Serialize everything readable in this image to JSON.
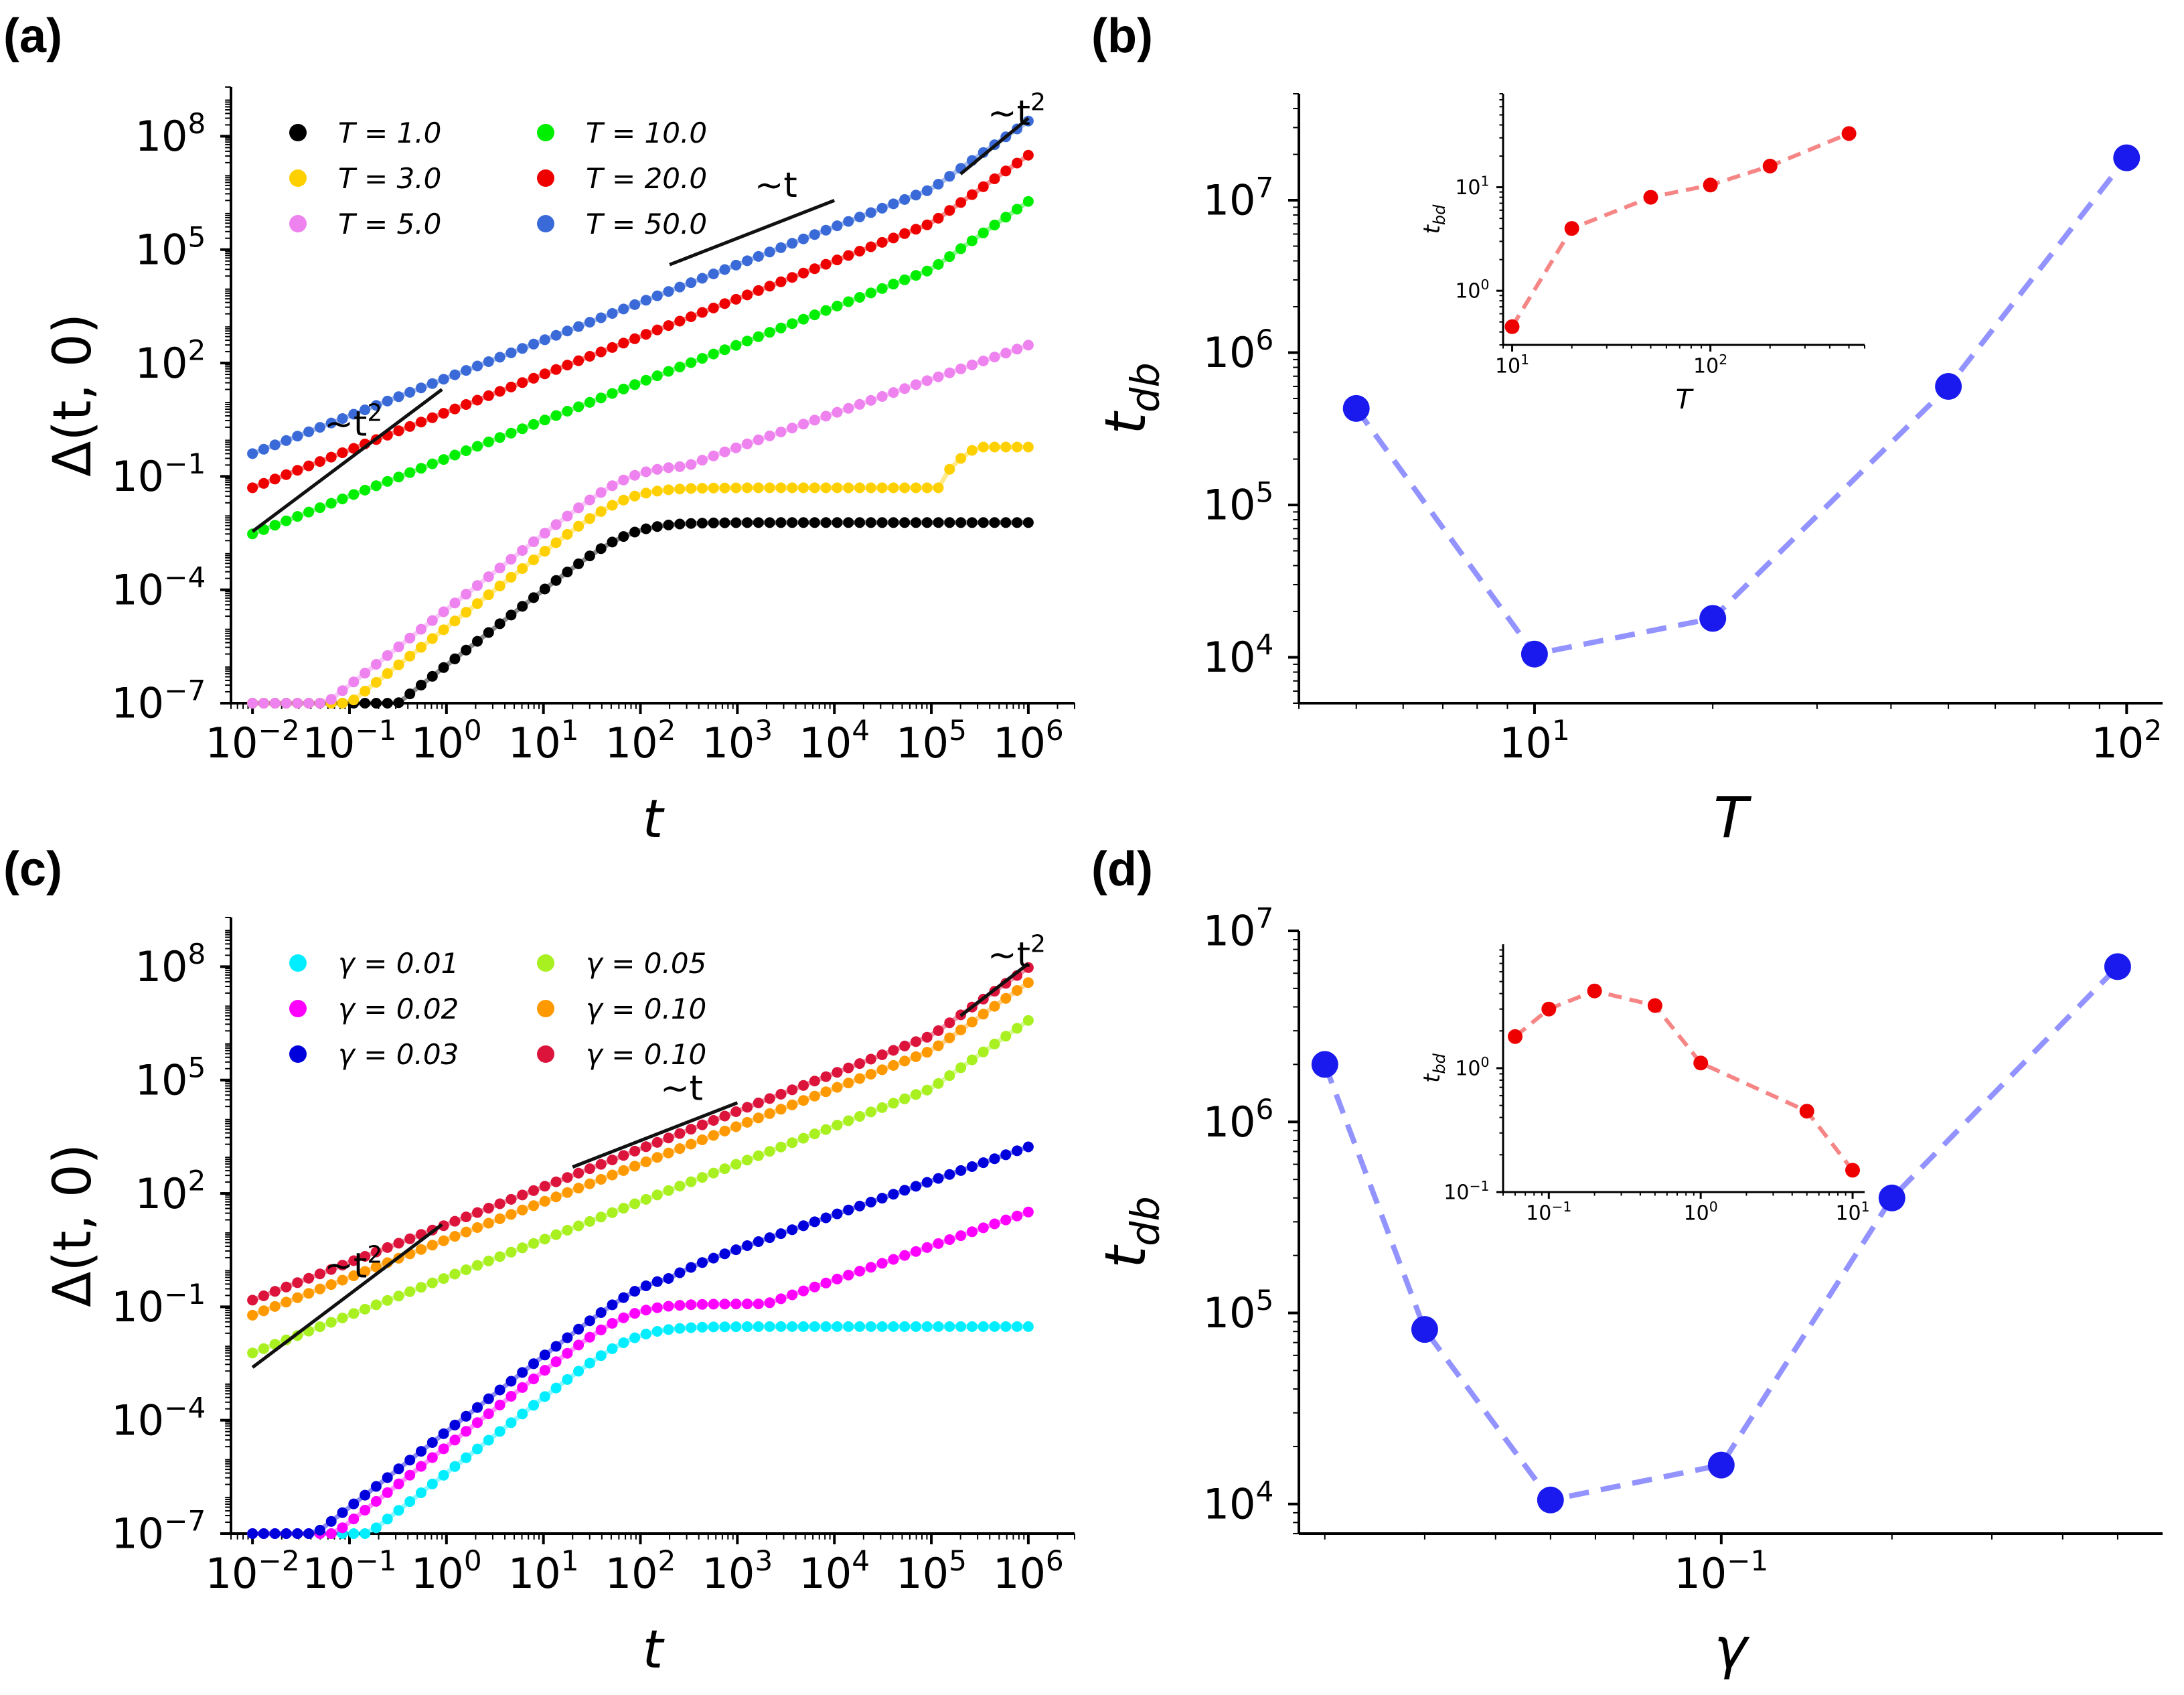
{
  "panels": {
    "a": {
      "label": "(a)"
    },
    "b": {
      "label": "(b)"
    },
    "c": {
      "label": "(c)"
    },
    "d": {
      "label": "(d)"
    }
  },
  "chart_data": [
    {
      "id": "a",
      "type": "line",
      "scale": "log-log",
      "xlabel": "t",
      "ylabel": "Δ(t, 0)",
      "xlim": [
        0.006,
        3000000
      ],
      "ylim": [
        1e-07,
        2000000000.0
      ],
      "xticks": [
        {
          "v": 0.01,
          "m": "10",
          "e": "−2"
        },
        {
          "v": 0.1,
          "m": "10",
          "e": "−1"
        },
        {
          "v": 1,
          "m": "10",
          "e": "0"
        },
        {
          "v": 10,
          "m": "10",
          "e": "1"
        },
        {
          "v": 100,
          "m": "10",
          "e": "2"
        },
        {
          "v": 1000,
          "m": "10",
          "e": "3"
        },
        {
          "v": 10000,
          "m": "10",
          "e": "4"
        },
        {
          "v": 100000,
          "m": "10",
          "e": "5"
        },
        {
          "v": 1000000,
          "m": "10",
          "e": "6"
        }
      ],
      "yticks": [
        {
          "v": 1e-07,
          "m": "10",
          "e": "−7"
        },
        {
          "v": 0.0001,
          "m": "10",
          "e": "−4"
        },
        {
          "v": 0.1,
          "m": "10",
          "e": "−1"
        },
        {
          "v": 100,
          "m": "10",
          "e": "2"
        },
        {
          "v": 100000,
          "m": "10",
          "e": "5"
        },
        {
          "v": 100000000,
          "m": "10",
          "e": "8"
        }
      ],
      "series": [
        {
          "name": "T = 1.0",
          "color": "#000000",
          "plateau": 0.006,
          "jump_t": 0,
          "jump_to": 0,
          "growth_t": 0,
          "lin_pref": 0
        },
        {
          "name": "T = 3.0",
          "color": "#ffd000",
          "plateau": 0.05,
          "jump_t": 120000,
          "jump_to": 0.6,
          "growth_t": 0,
          "lin_pref": 0
        },
        {
          "name": "T = 5.0",
          "color": "#ee82ee",
          "plateau": 0.2,
          "jump_t": 0,
          "jump_to": 0,
          "growth_t": 300,
          "lin_pref": 0
        },
        {
          "name": "T = 10.0",
          "color": "#00ee00",
          "plateau": 3,
          "jump_t": 0,
          "jump_to": 0,
          "growth_t": 0,
          "lin_pref": 0.3
        },
        {
          "name": "T = 20.0",
          "color": "#ee0000",
          "plateau": 20,
          "jump_t": 0,
          "jump_to": 0,
          "growth_t": 0,
          "lin_pref": 5
        },
        {
          "name": "T = 50.0",
          "color": "#3a6ad8",
          "plateau": 150,
          "jump_t": 0,
          "jump_to": 0,
          "growth_t": 0,
          "lin_pref": 40
        }
      ],
      "series_a0": [
        1e-06,
        1e-05,
        3e-05,
        0.0001,
        0.0003,
        0.001
      ],
      "annotations": [
        {
          "text": "~t",
          "sup": "2",
          "x0": 0.01,
          "y0": 0.0035,
          "x1": 0.9,
          "y1": 20,
          "tx": 0.055,
          "ty": 1.2
        },
        {
          "text": "~t",
          "sup": "",
          "x0": 200,
          "y0": 40000,
          "x1": 10000,
          "y1": 2000000,
          "tx": 1500,
          "ty": 2500000
        },
        {
          "text": "~t",
          "sup": "2",
          "x0": 200000,
          "y0": 10000000,
          "x1": 1000000,
          "y1": 300000000,
          "tx": 380000,
          "ty": 200000000
        }
      ]
    },
    {
      "id": "b",
      "type": "line",
      "scale": "log-log",
      "xlabel": "T",
      "ylabel": "t_db",
      "xlim": [
        4,
        115
      ],
      "ylim": [
        5000,
        50000000
      ],
      "xticks": [
        {
          "v": 10,
          "m": "10",
          "e": "1"
        },
        {
          "v": 100,
          "m": "10",
          "e": "2"
        }
      ],
      "yticks": [
        {
          "v": 10000,
          "m": "10",
          "e": "4"
        },
        {
          "v": 100000,
          "m": "10",
          "e": "5"
        },
        {
          "v": 1000000,
          "m": "10",
          "e": "6"
        },
        {
          "v": 10000000,
          "m": "10",
          "e": "7"
        }
      ],
      "x": [
        5,
        10,
        20,
        50,
        100
      ],
      "y": [
        430000,
        10500,
        18000,
        600000,
        19000000
      ],
      "color": "#4b4bff",
      "inset": {
        "xlabel": "T",
        "ylabel": "t_bd",
        "xlim": [
          9,
          600
        ],
        "ylim": [
          0.3,
          80
        ],
        "xticks": [
          {
            "v": 10,
            "m": "10",
            "e": "1"
          },
          {
            "v": 100,
            "m": "10",
            "e": "2"
          }
        ],
        "yticks": [
          {
            "v": 1,
            "m": "10",
            "e": "0"
          },
          {
            "v": 10,
            "m": "10",
            "e": "1"
          }
        ],
        "x": [
          10,
          20,
          50,
          100,
          200,
          500
        ],
        "y": [
          0.45,
          4.0,
          8.0,
          10.5,
          16.0,
          33.0
        ],
        "color": "#ee2222"
      }
    },
    {
      "id": "c",
      "type": "line",
      "scale": "log-log",
      "xlabel": "t",
      "ylabel": "Δ(t, 0)",
      "xlim": [
        0.006,
        3000000
      ],
      "ylim": [
        1e-07,
        2000000000.0
      ],
      "xticks": [
        {
          "v": 0.01,
          "m": "10",
          "e": "−2"
        },
        {
          "v": 0.1,
          "m": "10",
          "e": "−1"
        },
        {
          "v": 1,
          "m": "10",
          "e": "0"
        },
        {
          "v": 10,
          "m": "10",
          "e": "1"
        },
        {
          "v": 100,
          "m": "10",
          "e": "2"
        },
        {
          "v": 1000,
          "m": "10",
          "e": "3"
        },
        {
          "v": 10000,
          "m": "10",
          "e": "4"
        },
        {
          "v": 100000,
          "m": "10",
          "e": "5"
        },
        {
          "v": 1000000,
          "m": "10",
          "e": "6"
        }
      ],
      "yticks": [
        {
          "v": 1e-07,
          "m": "10",
          "e": "−7"
        },
        {
          "v": 0.0001,
          "m": "10",
          "e": "−4"
        },
        {
          "v": 0.1,
          "m": "10",
          "e": "−1"
        },
        {
          "v": 100,
          "m": "10",
          "e": "2"
        },
        {
          "v": 100000,
          "m": "10",
          "e": "5"
        },
        {
          "v": 100000000,
          "m": "10",
          "e": "8"
        }
      ],
      "series": [
        {
          "name": "γ = 0.01",
          "color": "#00eeff",
          "plateau": 0.03,
          "jump_t": 0,
          "jump_to": 0,
          "growth_t": 0,
          "lin_pref": 0
        },
        {
          "name": "γ = 0.02",
          "color": "#ff00ff",
          "plateau": 0.12,
          "jump_t": 0,
          "jump_to": 0,
          "growth_t": 2000,
          "lin_pref": 0
        },
        {
          "name": "γ = 0.03",
          "color": "#0000dd",
          "plateau": 0.8,
          "jump_t": 0,
          "jump_to": 0,
          "growth_t": 200,
          "lin_pref": 0
        },
        {
          "name": "γ = 0.05",
          "color": "#a8f020",
          "plateau": 8,
          "jump_t": 0,
          "jump_to": 0,
          "growth_t": 0,
          "lin_pref": 0.6
        },
        {
          "name": "γ = 0.10",
          "color": "#ff9900",
          "plateau": 40,
          "jump_t": 0,
          "jump_to": 0,
          "growth_t": 0,
          "lin_pref": 6
        },
        {
          "name": "γ = 0.10",
          "color": "#dc143c",
          "plateau": 60,
          "jump_t": 0,
          "jump_to": 0,
          "growth_t": 0,
          "lin_pref": 15
        }
      ],
      "series_a0": [
        4e-06,
        2e-05,
        5e-05,
        0.0001,
        0.0002,
        0.0005
      ],
      "annotations": [
        {
          "text": "~t",
          "sup": "2",
          "x0": 0.01,
          "y0": 0.0025,
          "x1": 0.9,
          "y1": 15,
          "tx": 0.055,
          "ty": 0.6
        },
        {
          "text": "~t",
          "sup": "",
          "x0": 20,
          "y0": 500,
          "x1": 1000,
          "y1": 25000,
          "tx": 160,
          "ty": 30000
        },
        {
          "text": "~t",
          "sup": "2",
          "x0": 200000,
          "y0": 5000000,
          "x1": 1000000,
          "y1": 120000000,
          "tx": 380000,
          "ty": 100000000
        }
      ]
    },
    {
      "id": "d",
      "type": "line",
      "scale": "log-log",
      "xlabel": "γ",
      "ylabel": "t_db",
      "xlim": [
        0.018,
        0.6
      ],
      "ylim": [
        7000,
        10000000
      ],
      "xticks": [
        {
          "v": 0.1,
          "m": "10",
          "e": "−1"
        }
      ],
      "yticks": [
        {
          "v": 10000,
          "m": "10",
          "e": "4"
        },
        {
          "v": 100000,
          "m": "10",
          "e": "5"
        },
        {
          "v": 1000000,
          "m": "10",
          "e": "6"
        },
        {
          "v": 10000000,
          "m": "10",
          "e": "7"
        }
      ],
      "x": [
        0.02,
        0.03,
        0.05,
        0.1,
        0.2,
        0.5
      ],
      "y": [
        2000000,
        82000,
        10500,
        16000,
        400000,
        6500000
      ],
      "color": "#4b4bff",
      "inset": {
        "xlabel": "",
        "ylabel": "t_bd",
        "xlim": [
          0.05,
          12
        ],
        "ylim": [
          0.1,
          10
        ],
        "xticks": [
          {
            "v": 0.1,
            "m": "10",
            "e": "−1"
          },
          {
            "v": 1,
            "m": "10",
            "e": "0"
          },
          {
            "v": 10,
            "m": "10",
            "e": "1"
          }
        ],
        "yticks": [
          {
            "v": 0.1,
            "m": "10",
            "e": "−1"
          },
          {
            "v": 1,
            "m": "10",
            "e": "0"
          }
        ],
        "x": [
          0.06,
          0.1,
          0.2,
          0.5,
          1,
          5,
          10
        ],
        "y": [
          1.8,
          3.0,
          4.2,
          3.2,
          1.1,
          0.45,
          0.15
        ],
        "color": "#ee2222"
      }
    }
  ]
}
